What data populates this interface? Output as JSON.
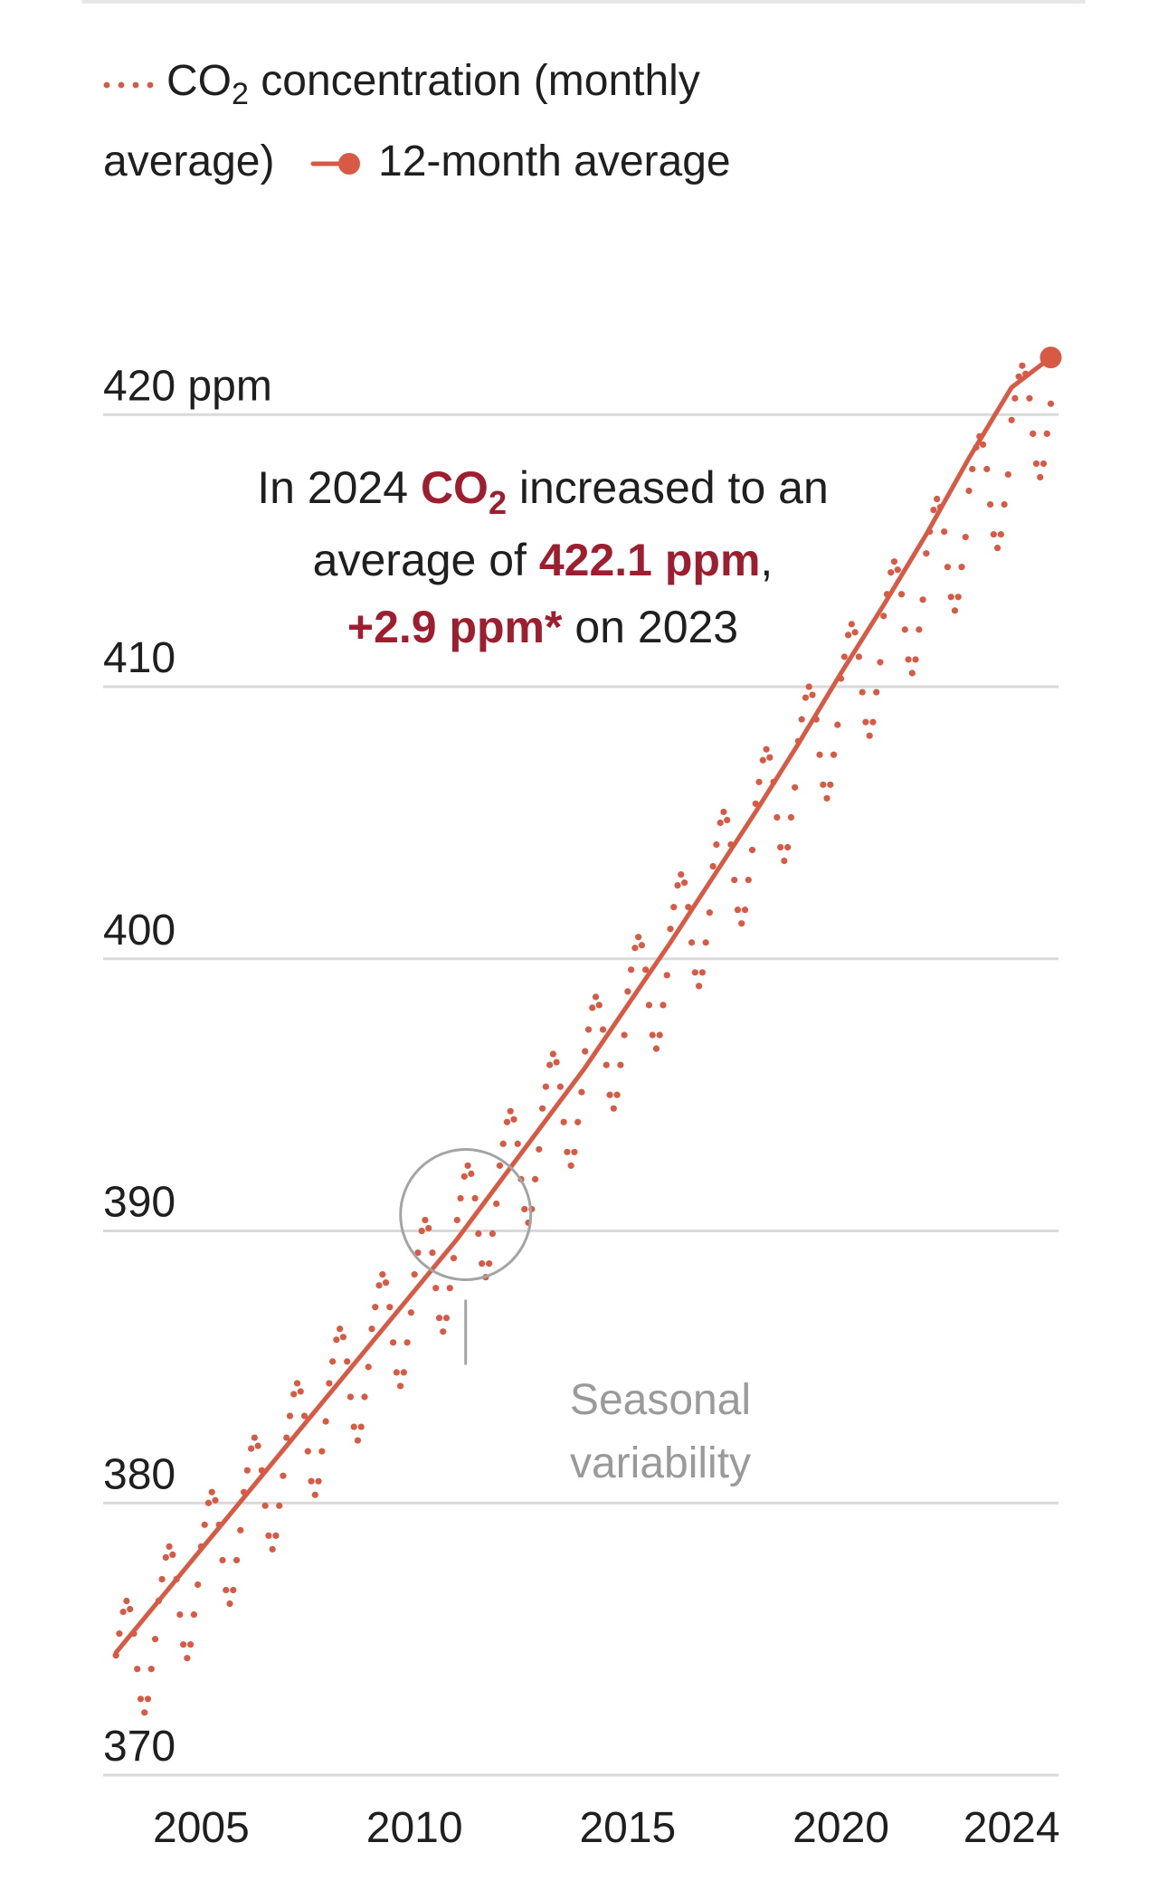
{
  "colors": {
    "accent": "#d65a44",
    "highlight": "#9d1f2f",
    "grid": "#d9d9d9",
    "text": "#1f1f1f",
    "muted": "#9a9a9a"
  },
  "legend": {
    "monthly": {
      "prefix": "CO",
      "subscript": "2",
      "suffix": " concentration (monthly",
      "line2": "average)"
    },
    "average": {
      "label": "12-month average"
    }
  },
  "annotation": {
    "line1_prefix": "In 2024 ",
    "line1_strong": "CO",
    "line1_sub": "2",
    "line1_suffix": " increased to an",
    "line2_prefix": "average of ",
    "line2_strong": "422.1 ppm",
    "line2_suffix": ",",
    "line3_strong": "+2.9 ppm*",
    "line3_suffix": " on 2023"
  },
  "callout": {
    "line1": "Seasonal",
    "line2": "variability"
  },
  "chart_data": {
    "type": "line",
    "title": "",
    "xlabel": "",
    "ylabel": "",
    "xlim": [
      2002.7,
      2025.1
    ],
    "ylim": [
      370,
      424
    ],
    "y_ticks": [
      {
        "value": 370,
        "label": "370"
      },
      {
        "value": 380,
        "label": "380"
      },
      {
        "value": 390,
        "label": "390"
      },
      {
        "value": 400,
        "label": "400"
      },
      {
        "value": 410,
        "label": "410"
      },
      {
        "value": 420,
        "label": "420 ppm"
      }
    ],
    "x_ticks": [
      {
        "value": 2005,
        "label": "2005"
      },
      {
        "value": 2010,
        "label": "2010"
      },
      {
        "value": 2015,
        "label": "2015"
      },
      {
        "value": 2020,
        "label": "2020"
      },
      {
        "value": 2024,
        "label": "2024"
      }
    ],
    "series": [
      {
        "name": "CO2 concentration (monthly average)",
        "style": "dotted",
        "x": [
          2003.0,
          2003.08,
          2003.17,
          2003.25,
          2003.33,
          2003.42,
          2003.5,
          2003.58,
          2003.67,
          2003.75,
          2003.83,
          2003.92,
          2004.0,
          2004.08,
          2004.17,
          2004.25,
          2004.33,
          2004.42,
          2004.5,
          2004.58,
          2004.67,
          2004.75,
          2004.83,
          2004.92,
          2005.0,
          2005.08,
          2005.17,
          2005.25,
          2005.33,
          2005.42,
          2005.5,
          2005.58,
          2005.67,
          2005.75,
          2005.83,
          2005.92,
          2006.0,
          2006.08,
          2006.17,
          2006.25,
          2006.33,
          2006.42,
          2006.5,
          2006.58,
          2006.67,
          2006.75,
          2006.83,
          2006.92,
          2007.0,
          2007.08,
          2007.17,
          2007.25,
          2007.33,
          2007.42,
          2007.5,
          2007.58,
          2007.67,
          2007.75,
          2007.83,
          2007.92,
          2008.0,
          2008.08,
          2008.17,
          2008.25,
          2008.33,
          2008.42,
          2008.5,
          2008.58,
          2008.67,
          2008.75,
          2008.83,
          2008.92,
          2009.0,
          2009.08,
          2009.17,
          2009.25,
          2009.33,
          2009.42,
          2009.5,
          2009.58,
          2009.67,
          2009.75,
          2009.83,
          2009.92,
          2010.0,
          2010.08,
          2010.17,
          2010.25,
          2010.33,
          2010.42,
          2010.5,
          2010.58,
          2010.67,
          2010.75,
          2010.83,
          2010.92,
          2011.0,
          2011.08,
          2011.17,
          2011.25,
          2011.33,
          2011.42,
          2011.5,
          2011.58,
          2011.67,
          2011.75,
          2011.83,
          2011.92,
          2012.0,
          2012.08,
          2012.17,
          2012.25,
          2012.33,
          2012.42,
          2012.5,
          2012.58,
          2012.67,
          2012.75,
          2012.83,
          2012.92,
          2013.0,
          2013.08,
          2013.17,
          2013.25,
          2013.33,
          2013.42,
          2013.5,
          2013.58,
          2013.67,
          2013.75,
          2013.83,
          2013.92,
          2014.0,
          2014.08,
          2014.17,
          2014.25,
          2014.33,
          2014.42,
          2014.5,
          2014.58,
          2014.67,
          2014.75,
          2014.83,
          2014.92,
          2015.0,
          2015.08,
          2015.17,
          2015.25,
          2015.33,
          2015.42,
          2015.5,
          2015.58,
          2015.67,
          2015.75,
          2015.83,
          2015.92,
          2016.0,
          2016.08,
          2016.17,
          2016.25,
          2016.33,
          2016.42,
          2016.5,
          2016.58,
          2016.67,
          2016.75,
          2016.83,
          2016.92,
          2017.0,
          2017.08,
          2017.17,
          2017.25,
          2017.33,
          2017.42,
          2017.5,
          2017.58,
          2017.67,
          2017.75,
          2017.83,
          2017.92,
          2018.0,
          2018.08,
          2018.17,
          2018.25,
          2018.33,
          2018.42,
          2018.5,
          2018.58,
          2018.67,
          2018.75,
          2018.83,
          2018.92,
          2019.0,
          2019.08,
          2019.17,
          2019.25,
          2019.33,
          2019.42,
          2019.5,
          2019.58,
          2019.67,
          2019.75,
          2019.83,
          2019.92,
          2020.0,
          2020.08,
          2020.17,
          2020.25,
          2020.33,
          2020.42,
          2020.5,
          2020.58,
          2020.67,
          2020.75,
          2020.83,
          2020.92,
          2021.0,
          2021.08,
          2021.17,
          2021.25,
          2021.33,
          2021.42,
          2021.5,
          2021.58,
          2021.67,
          2021.75,
          2021.83,
          2021.92,
          2022.0,
          2022.08,
          2022.17,
          2022.25,
          2022.33,
          2022.42,
          2022.5,
          2022.58,
          2022.67,
          2022.75,
          2022.83,
          2022.92,
          2023.0,
          2023.08,
          2023.17,
          2023.25,
          2023.33,
          2023.42,
          2023.5,
          2023.58,
          2023.67,
          2023.75,
          2023.83,
          2023.92,
          2024.0,
          2024.08,
          2024.17,
          2024.25,
          2024.33,
          2024.42,
          2024.5,
          2024.58,
          2024.67,
          2024.75,
          2024.83,
          2024.92
        ],
        "y": [
          374.4,
          375.2,
          376.0,
          376.4,
          376.1,
          375.2,
          373.9,
          372.8,
          372.3,
          372.8,
          373.9,
          375.0,
          376.4,
          377.2,
          378.0,
          378.4,
          378.1,
          377.2,
          375.9,
          374.8,
          374.3,
          374.8,
          375.9,
          377.0,
          378.4,
          379.2,
          380.0,
          380.4,
          380.1,
          379.2,
          377.9,
          376.8,
          376.3,
          376.8,
          377.9,
          379.0,
          380.4,
          381.2,
          382.0,
          382.4,
          382.1,
          381.2,
          379.9,
          378.8,
          378.3,
          378.8,
          379.9,
          381.0,
          382.4,
          383.2,
          384.0,
          384.4,
          384.1,
          383.2,
          381.9,
          380.8,
          380.3,
          380.8,
          381.9,
          383.0,
          384.4,
          385.2,
          386.0,
          386.4,
          386.1,
          385.2,
          383.9,
          382.8,
          382.3,
          382.8,
          383.9,
          385.0,
          386.4,
          387.2,
          388.0,
          388.4,
          388.1,
          387.2,
          385.9,
          384.8,
          384.3,
          384.8,
          385.9,
          387.0,
          388.4,
          389.2,
          390.0,
          390.4,
          390.1,
          389.2,
          387.9,
          386.8,
          386.3,
          386.8,
          387.9,
          389.0,
          390.4,
          391.2,
          392.0,
          392.4,
          392.1,
          391.2,
          389.9,
          388.8,
          388.3,
          388.8,
          389.9,
          391.0,
          392.4,
          393.2,
          394.0,
          394.4,
          394.1,
          393.2,
          391.9,
          390.8,
          390.3,
          390.8,
          391.9,
          393.0,
          394.5,
          395.3,
          396.1,
          396.5,
          396.2,
          395.3,
          394.0,
          392.9,
          392.4,
          392.9,
          394.0,
          395.1,
          396.6,
          397.4,
          398.2,
          398.6,
          398.3,
          397.4,
          396.1,
          395.0,
          394.5,
          395.0,
          396.1,
          397.2,
          398.8,
          399.6,
          400.4,
          400.8,
          400.5,
          399.6,
          398.3,
          397.2,
          396.7,
          397.2,
          398.3,
          399.4,
          401.1,
          401.9,
          402.7,
          403.1,
          402.8,
          401.9,
          400.6,
          399.5,
          399.0,
          399.5,
          400.6,
          401.7,
          403.4,
          404.2,
          405.0,
          405.4,
          405.1,
          404.2,
          402.9,
          401.8,
          401.3,
          401.8,
          402.9,
          404.0,
          405.7,
          406.5,
          407.3,
          407.7,
          407.4,
          406.5,
          405.2,
          404.1,
          403.6,
          404.1,
          405.2,
          406.3,
          408.0,
          408.8,
          409.6,
          410.0,
          409.7,
          408.8,
          407.5,
          406.4,
          405.9,
          406.4,
          407.5,
          408.6,
          410.3,
          411.1,
          411.9,
          412.3,
          412.0,
          411.1,
          409.8,
          408.7,
          408.2,
          408.7,
          409.8,
          410.9,
          412.6,
          413.4,
          414.2,
          414.6,
          414.3,
          413.4,
          412.1,
          411.0,
          410.5,
          411.0,
          412.1,
          413.2,
          414.9,
          415.7,
          416.5,
          416.9,
          416.6,
          415.7,
          414.4,
          413.3,
          412.8,
          413.3,
          414.4,
          415.5,
          417.2,
          418.0,
          418.8,
          419.2,
          418.9,
          418.0,
          416.7,
          415.6,
          415.1,
          415.6,
          416.7,
          417.8,
          419.8,
          420.6,
          421.4,
          421.8,
          421.5,
          420.6,
          419.3,
          418.2,
          417.7,
          418.2,
          419.3,
          420.4
        ]
      },
      {
        "name": "12-month average",
        "style": "solid",
        "x": [
          2003.0,
          2004.0,
          2005.0,
          2006.0,
          2007.0,
          2008.0,
          2009.0,
          2010.0,
          2011.0,
          2012.0,
          2013.0,
          2014.0,
          2015.0,
          2016.0,
          2017.0,
          2018.0,
          2019.0,
          2020.0,
          2021.0,
          2022.0,
          2023.0,
          2024.0,
          2024.92
        ],
        "y": [
          374.5,
          376.4,
          378.3,
          380.2,
          382.1,
          384.0,
          385.9,
          387.8,
          389.7,
          391.8,
          393.9,
          396.0,
          398.3,
          400.6,
          403.0,
          405.4,
          407.9,
          410.5,
          413.0,
          415.6,
          418.4,
          421.0,
          422.1
        ]
      }
    ],
    "annotations": [
      {
        "type": "circle",
        "x": 2011.2,
        "y": 390.6,
        "label": "Seasonal variability"
      },
      {
        "type": "end-point",
        "x": 2024.92,
        "y": 422.1
      }
    ],
    "legend": "top-left",
    "grid": true
  }
}
